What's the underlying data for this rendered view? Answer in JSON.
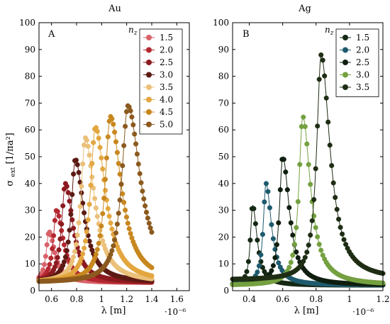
{
  "chart_data": [
    {
      "type": "line",
      "title": "Au",
      "panel_label": "A",
      "xlabel": "λ [m]",
      "x_multiplier": "·10⁻⁶",
      "ylabel": "σ_ext [1/πa²]",
      "xlim": [
        0.5,
        1.7
      ],
      "ylim": [
        0,
        100
      ],
      "xticks": [
        0.6,
        0.8,
        1.0,
        1.2,
        1.4,
        1.6
      ],
      "xtick_labels": [
        "0.6",
        "0.8",
        "1",
        "1.2",
        "1.4",
        "1.6"
      ],
      "yticks": [
        0,
        10,
        20,
        30,
        40,
        50,
        60,
        70,
        80,
        90,
        100
      ],
      "ytick_labels": [
        "0",
        "10",
        "20",
        "30",
        "40",
        "50",
        "60",
        "70",
        "80",
        "90",
        "100"
      ],
      "legend_title": "n_z",
      "legend_position": "top-right",
      "x_range": [
        0.5,
        1.4
      ],
      "series": [
        {
          "name": "1.5",
          "color": "#d9626a",
          "peak_x": 0.58,
          "peak_y": 22,
          "baseline": 3,
          "width": 0.035
        },
        {
          "name": "2.0",
          "color": "#b32830",
          "peak_x": 0.64,
          "peak_y": 30,
          "baseline": 3,
          "width": 0.04
        },
        {
          "name": "2.5",
          "color": "#8c1a20",
          "peak_x": 0.71,
          "peak_y": 40,
          "baseline": 3,
          "width": 0.045
        },
        {
          "name": "3.0",
          "color": "#5c1a14",
          "peak_x": 0.79,
          "peak_y": 49,
          "baseline": 3,
          "width": 0.05
        },
        {
          "name": "3.5",
          "color": "#ebc079",
          "peak_x": 0.87,
          "peak_y": 57,
          "baseline": 3,
          "width": 0.055
        },
        {
          "name": "4.0",
          "color": "#e3a63f",
          "peak_x": 0.95,
          "peak_y": 61,
          "baseline": 3,
          "width": 0.06
        },
        {
          "name": "4.5",
          "color": "#c8871e",
          "peak_x": 1.07,
          "peak_y": 65,
          "baseline": 3,
          "width": 0.065
        },
        {
          "name": "5.0",
          "color": "#8c5a1e",
          "peak_x": 1.21,
          "peak_y": 69,
          "baseline": 3,
          "width": 0.075
        }
      ]
    },
    {
      "type": "line",
      "title": "Ag",
      "panel_label": "B",
      "xlabel": "λ [m]",
      "x_multiplier": "·10⁻⁶",
      "ylabel": "",
      "xlim": [
        0.3,
        1.2
      ],
      "ylim": [
        0,
        100
      ],
      "xticks": [
        0.4,
        0.6,
        0.8,
        1.0,
        1.2
      ],
      "xtick_labels": [
        "0.4",
        "0.6",
        "0.8",
        "1",
        "1.2"
      ],
      "yticks": [
        0,
        10,
        20,
        30,
        40,
        50,
        60,
        70,
        80,
        90,
        100
      ],
      "ytick_labels": [
        "0",
        "10",
        "20",
        "30",
        "40",
        "50",
        "60",
        "70",
        "80",
        "90",
        "100"
      ],
      "legend_title": "n_z",
      "legend_position": "top-right",
      "x_range": [
        0.3,
        1.2
      ],
      "series": [
        {
          "name": "1.5",
          "color": "#142814",
          "peak_x": 0.42,
          "peak_y": 32,
          "baseline": 2,
          "width": 0.02
        },
        {
          "name": "2.0",
          "color": "#1e5a6e",
          "peak_x": 0.5,
          "peak_y": 40,
          "baseline": 2,
          "width": 0.025
        },
        {
          "name": "2.5",
          "color": "#0f1e0f",
          "peak_x": 0.6,
          "peak_y": 50,
          "baseline": 2,
          "width": 0.03
        },
        {
          "name": "3.0",
          "color": "#74a040",
          "peak_x": 0.72,
          "peak_y": 65,
          "baseline": 2,
          "width": 0.035
        },
        {
          "name": "3.5",
          "color": "#1e2d14",
          "peak_x": 0.83,
          "peak_y": 88,
          "baseline": 4,
          "width": 0.04
        }
      ]
    }
  ]
}
